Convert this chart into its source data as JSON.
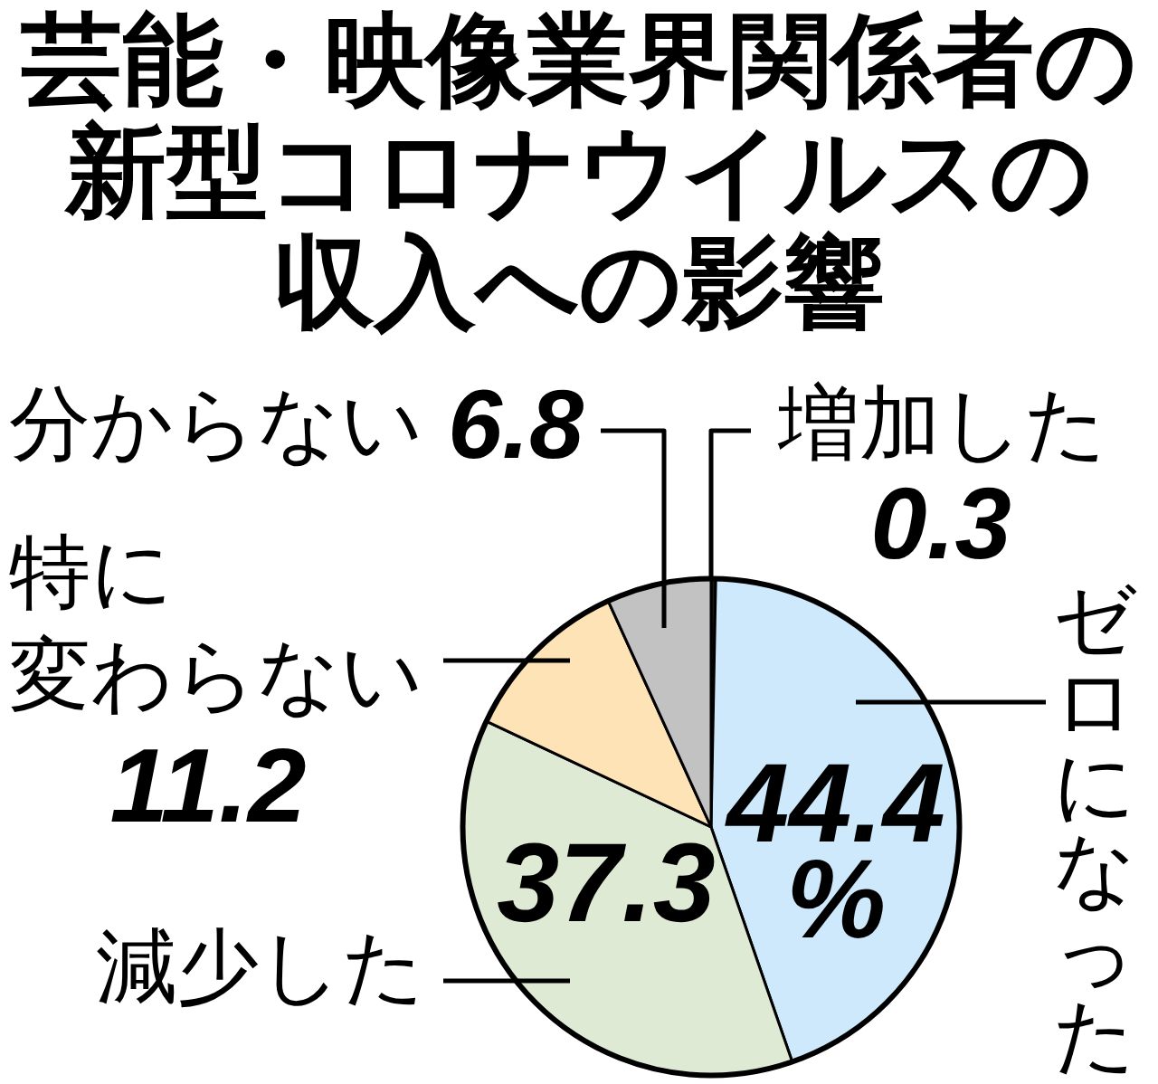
{
  "chart_data": {
    "type": "pie",
    "title": "芸能・映像業界関係者の新型コロナウイルスの収入への影響",
    "categories": [
      "増加した",
      "ゼロになった",
      "減少した",
      "特に変わらない",
      "分からない"
    ],
    "values": [
      0.3,
      44.4,
      37.3,
      11.2,
      6.8
    ],
    "colors": [
      "#1a1a1a",
      "#cde9fb",
      "#dfead5",
      "#fde3b5",
      "#c2c2c2"
    ],
    "value_labels": [
      "0.3",
      "44.4\n%",
      "37.3",
      "11.2",
      "6.8"
    ]
  }
}
